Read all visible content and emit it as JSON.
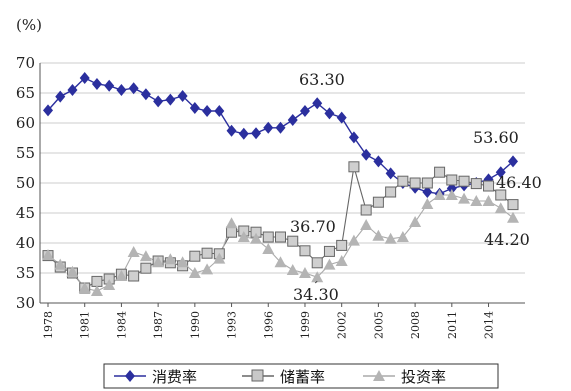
{
  "chart_data": {
    "type": "line",
    "y_unit": "(%)",
    "ylim": [
      30,
      70
    ],
    "y_ticks": [
      30,
      35,
      40,
      45,
      50,
      55,
      60,
      65,
      70
    ],
    "grid": true,
    "legend_position": "bottom",
    "x": [
      1978,
      1979,
      1980,
      1981,
      1982,
      1983,
      1984,
      1985,
      1986,
      1987,
      1988,
      1989,
      1990,
      1991,
      1992,
      1993,
      1994,
      1995,
      1996,
      1997,
      1998,
      1999,
      2000,
      2001,
      2002,
      2003,
      2004,
      2005,
      2006,
      2007,
      2008,
      2009,
      2010,
      2011,
      2012,
      2013,
      2014,
      2015,
      2016
    ],
    "x_tick_labels": [
      "1978",
      "1981",
      "1984",
      "1987",
      "1990",
      "1993",
      "1996",
      "1999",
      "2002",
      "2005",
      "2008",
      "2011",
      "2014"
    ],
    "series": [
      {
        "name": "消费率",
        "marker": "diamond",
        "color": "#2b2f9e",
        "values": [
          62.1,
          64.4,
          65.5,
          67.5,
          66.5,
          66.2,
          65.5,
          65.8,
          64.8,
          63.6,
          63.9,
          64.5,
          62.5,
          62.0,
          62.0,
          58.7,
          58.2,
          58.3,
          59.2,
          59.2,
          60.5,
          62.0,
          63.3,
          61.6,
          60.9,
          57.6,
          54.7,
          53.6,
          51.6,
          50.0,
          49.2,
          48.5,
          48.2,
          49.1,
          49.6,
          50.0,
          50.6,
          51.8,
          53.6
        ]
      },
      {
        "name": "储蓄率",
        "marker": "square",
        "color": "#999999",
        "values": [
          37.9,
          36.0,
          35.0,
          32.5,
          33.6,
          34.0,
          34.8,
          34.5,
          35.8,
          37.0,
          36.7,
          36.2,
          37.8,
          38.3,
          38.2,
          41.8,
          42.0,
          41.8,
          41.0,
          41.0,
          40.3,
          38.7,
          36.7,
          38.6,
          39.6,
          52.7,
          45.5,
          46.8,
          48.5,
          50.3,
          50.0,
          50.0,
          51.8,
          50.5,
          50.3,
          49.9,
          49.5,
          48.0,
          46.4
        ]
      },
      {
        "name": "投资率",
        "marker": "triangle",
        "color": "#b4b4b4",
        "values": [
          38.0,
          36.4,
          35.2,
          32.5,
          32.0,
          33.0,
          34.5,
          38.5,
          37.8,
          36.8,
          37.3,
          36.8,
          35.0,
          35.6,
          37.4,
          43.3,
          41.0,
          40.7,
          39.0,
          36.8,
          35.5,
          35.0,
          34.3,
          36.4,
          37.0,
          40.4,
          43.0,
          41.2,
          40.7,
          41.0,
          43.5,
          46.5,
          48.0,
          48.0,
          47.4,
          47.0,
          47.0,
          45.8,
          44.2
        ]
      }
    ],
    "annotations": [
      "63.30",
      "53.60",
      "46.40",
      "36.70",
      "34.30",
      "44.20"
    ]
  }
}
